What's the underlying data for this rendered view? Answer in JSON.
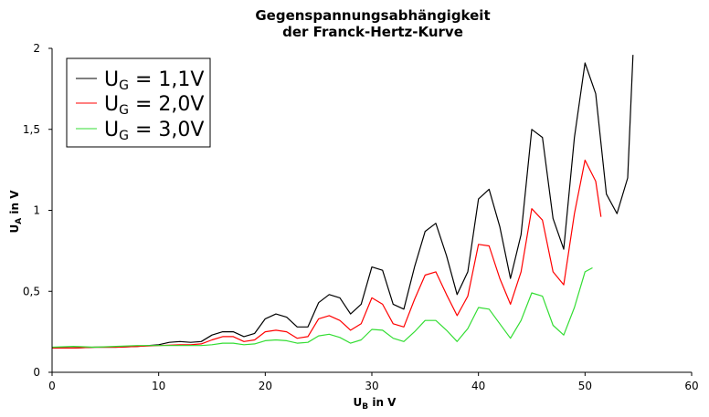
{
  "chart_data": {
    "type": "line",
    "title": [
      "Gegenspannungsabhängigkeit",
      "der Franck-Hertz-Kurve"
    ],
    "xlabel": {
      "main": "U",
      "sub": "B",
      "rest": " in V"
    },
    "ylabel": {
      "main": "U",
      "sub": "A",
      "rest": " in V"
    },
    "xlim": [
      0,
      60
    ],
    "ylim": [
      0,
      2
    ],
    "xticks": [
      0,
      10,
      20,
      30,
      40,
      50,
      60
    ],
    "xtick_labels": [
      "0",
      "10",
      "20",
      "30",
      "40",
      "50",
      "60"
    ],
    "yticks": [
      0,
      0.5,
      1,
      1.5,
      2
    ],
    "ytick_labels": [
      "0",
      "0,5",
      "1",
      "1,5",
      "2"
    ],
    "grid": false,
    "legend_position": "top-left",
    "series": [
      {
        "name": "U_G = 1,1V",
        "legend": {
          "main": "U",
          "sub": "G",
          "rest": " = 1,1V"
        },
        "color": "#000000",
        "points": [
          [
            0,
            0.15
          ],
          [
            2,
            0.15
          ],
          [
            4,
            0.155
          ],
          [
            6,
            0.155
          ],
          [
            8,
            0.16
          ],
          [
            10,
            0.17
          ],
          [
            11,
            0.185
          ],
          [
            12,
            0.19
          ],
          [
            13,
            0.185
          ],
          [
            14,
            0.19
          ],
          [
            15,
            0.23
          ],
          [
            16,
            0.25
          ],
          [
            17,
            0.25
          ],
          [
            18,
            0.22
          ],
          [
            19,
            0.24
          ],
          [
            20,
            0.33
          ],
          [
            21,
            0.36
          ],
          [
            22,
            0.34
          ],
          [
            23,
            0.28
          ],
          [
            24,
            0.28
          ],
          [
            25,
            0.43
          ],
          [
            26,
            0.48
          ],
          [
            27,
            0.46
          ],
          [
            28,
            0.36
          ],
          [
            29,
            0.42
          ],
          [
            30,
            0.65
          ],
          [
            31,
            0.63
          ],
          [
            32,
            0.42
          ],
          [
            33,
            0.39
          ],
          [
            34,
            0.65
          ],
          [
            35,
            0.87
          ],
          [
            36,
            0.92
          ],
          [
            37,
            0.72
          ],
          [
            38,
            0.48
          ],
          [
            39,
            0.62
          ],
          [
            40,
            1.07
          ],
          [
            41,
            1.13
          ],
          [
            42,
            0.9
          ],
          [
            43,
            0.58
          ],
          [
            44,
            0.85
          ],
          [
            45,
            1.5
          ],
          [
            46,
            1.45
          ],
          [
            47,
            0.95
          ],
          [
            48,
            0.76
          ],
          [
            49,
            1.45
          ],
          [
            50,
            1.91
          ],
          [
            51,
            1.72
          ],
          [
            52,
            1.1
          ],
          [
            53,
            0.98
          ],
          [
            54,
            1.2
          ],
          [
            54.5,
            1.96
          ]
        ]
      },
      {
        "name": "U_G = 2,0V",
        "legend": {
          "main": "U",
          "sub": "G",
          "rest": " = 2,0V"
        },
        "color": "#ff0000",
        "points": [
          [
            0,
            0.15
          ],
          [
            2,
            0.15
          ],
          [
            4,
            0.155
          ],
          [
            6,
            0.155
          ],
          [
            8,
            0.16
          ],
          [
            10,
            0.165
          ],
          [
            12,
            0.17
          ],
          [
            13,
            0.17
          ],
          [
            14,
            0.175
          ],
          [
            15,
            0.2
          ],
          [
            16,
            0.22
          ],
          [
            17,
            0.22
          ],
          [
            18,
            0.19
          ],
          [
            19,
            0.2
          ],
          [
            20,
            0.25
          ],
          [
            21,
            0.26
          ],
          [
            22,
            0.25
          ],
          [
            23,
            0.21
          ],
          [
            24,
            0.22
          ],
          [
            25,
            0.33
          ],
          [
            26,
            0.35
          ],
          [
            27,
            0.32
          ],
          [
            28,
            0.26
          ],
          [
            29,
            0.3
          ],
          [
            30,
            0.46
          ],
          [
            31,
            0.42
          ],
          [
            32,
            0.3
          ],
          [
            33,
            0.28
          ],
          [
            34,
            0.45
          ],
          [
            35,
            0.6
          ],
          [
            36,
            0.62
          ],
          [
            37,
            0.48
          ],
          [
            38,
            0.35
          ],
          [
            39,
            0.47
          ],
          [
            40,
            0.79
          ],
          [
            41,
            0.78
          ],
          [
            42,
            0.58
          ],
          [
            43,
            0.42
          ],
          [
            44,
            0.62
          ],
          [
            45,
            1.01
          ],
          [
            46,
            0.94
          ],
          [
            47,
            0.62
          ],
          [
            48,
            0.54
          ],
          [
            49,
            0.98
          ],
          [
            50,
            1.31
          ],
          [
            51,
            1.18
          ],
          [
            51.5,
            0.96
          ]
        ]
      },
      {
        "name": "U_G = 3,0V",
        "legend": {
          "main": "U",
          "sub": "G",
          "rest": " = 3,0V"
        },
        "color": "#33dd33",
        "points": [
          [
            0,
            0.155
          ],
          [
            2,
            0.16
          ],
          [
            4,
            0.155
          ],
          [
            6,
            0.16
          ],
          [
            8,
            0.165
          ],
          [
            10,
            0.165
          ],
          [
            12,
            0.165
          ],
          [
            14,
            0.165
          ],
          [
            15,
            0.17
          ],
          [
            16,
            0.18
          ],
          [
            17,
            0.18
          ],
          [
            18,
            0.17
          ],
          [
            19,
            0.175
          ],
          [
            20,
            0.195
          ],
          [
            21,
            0.2
          ],
          [
            22,
            0.195
          ],
          [
            23,
            0.18
          ],
          [
            24,
            0.185
          ],
          [
            25,
            0.225
          ],
          [
            26,
            0.235
          ],
          [
            27,
            0.215
          ],
          [
            28,
            0.18
          ],
          [
            29,
            0.2
          ],
          [
            30,
            0.265
          ],
          [
            31,
            0.26
          ],
          [
            32,
            0.21
          ],
          [
            33,
            0.19
          ],
          [
            34,
            0.25
          ],
          [
            35,
            0.32
          ],
          [
            36,
            0.32
          ],
          [
            37,
            0.26
          ],
          [
            38,
            0.19
          ],
          [
            39,
            0.27
          ],
          [
            40,
            0.4
          ],
          [
            41,
            0.39
          ],
          [
            42,
            0.3
          ],
          [
            43,
            0.21
          ],
          [
            44,
            0.32
          ],
          [
            45,
            0.49
          ],
          [
            46,
            0.47
          ],
          [
            47,
            0.29
          ],
          [
            48,
            0.23
          ],
          [
            49,
            0.4
          ],
          [
            50,
            0.62
          ],
          [
            50.7,
            0.645
          ]
        ]
      }
    ]
  }
}
